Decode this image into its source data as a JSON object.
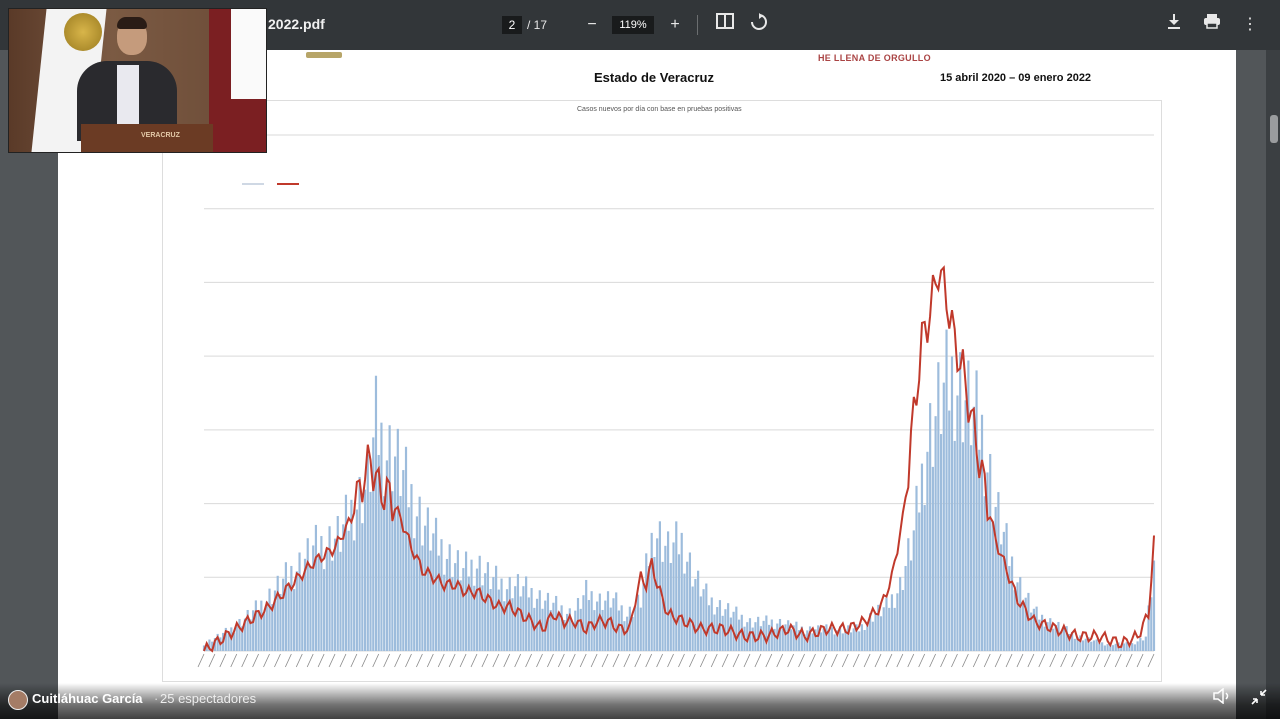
{
  "toolbar": {
    "filename": "2022.pdf",
    "page_current": "2",
    "page_total": "/ 17",
    "zoom": "119%",
    "icons": [
      "zoom-out-icon",
      "zoom-in-icon",
      "fit-page-icon",
      "rotate-icon",
      "download-icon",
      "print-icon",
      "more-icon"
    ]
  },
  "document": {
    "banner_fragment": "HE LLENA DE ORGULLO",
    "title": "Estado de Veracruz",
    "date_range": "15 abril 2020 – 09 enero 2022",
    "chart_title": "Casos nuevos por día con base en pruebas positivas"
  },
  "video": {
    "podium_label": "VERACRUZ"
  },
  "stream": {
    "streamer": "Cuitláhuac García",
    "separator": "·",
    "viewers": "25 espectadores"
  },
  "colors": {
    "bars": "#9dbcdc",
    "line": "#c0392b",
    "toolbar": "#323639"
  },
  "chart_data": {
    "type": "bar",
    "title": "Casos nuevos por día con base en pruebas positivas",
    "xlabel": "",
    "ylabel": "",
    "ylim": [
      0,
      70
    ],
    "grid": true,
    "series": [
      {
        "type": "bar",
        "anchors": [
          [
            0,
            1
          ],
          [
            10,
            3
          ],
          [
            20,
            6
          ],
          [
            30,
            10
          ],
          [
            40,
            14
          ],
          [
            50,
            16
          ],
          [
            55,
            20
          ],
          [
            60,
            23
          ],
          [
            63,
            31
          ],
          [
            66,
            28
          ],
          [
            70,
            27
          ],
          [
            75,
            22
          ],
          [
            80,
            18
          ],
          [
            85,
            15
          ],
          [
            90,
            13
          ],
          [
            95,
            11
          ],
          [
            100,
            12
          ],
          [
            105,
            10
          ],
          [
            110,
            9
          ],
          [
            115,
            9
          ],
          [
            120,
            8
          ],
          [
            125,
            7
          ],
          [
            130,
            6
          ],
          [
            135,
            5
          ],
          [
            140,
            8
          ],
          [
            145,
            7
          ],
          [
            150,
            7
          ],
          [
            155,
            5
          ],
          [
            160,
            7
          ],
          [
            165,
            17
          ],
          [
            170,
            14
          ],
          [
            175,
            15
          ],
          [
            180,
            10
          ],
          [
            185,
            7
          ],
          [
            190,
            6
          ],
          [
            195,
            5
          ],
          [
            200,
            4
          ],
          [
            210,
            4
          ],
          [
            220,
            3
          ],
          [
            230,
            3
          ],
          [
            240,
            3
          ],
          [
            245,
            5
          ],
          [
            250,
            6
          ],
          [
            255,
            9
          ],
          [
            260,
            16
          ],
          [
            265,
            29
          ],
          [
            270,
            35
          ],
          [
            275,
            38
          ],
          [
            280,
            34
          ],
          [
            285,
            30
          ],
          [
            290,
            20
          ],
          [
            295,
            13
          ],
          [
            300,
            8
          ],
          [
            305,
            5
          ],
          [
            310,
            4
          ],
          [
            320,
            2
          ],
          [
            330,
            1
          ],
          [
            340,
            1
          ],
          [
            345,
            2
          ],
          [
            348,
            12
          ]
        ]
      },
      {
        "type": "line",
        "anchors": [
          [
            0,
            0
          ],
          [
            8,
            2
          ],
          [
            16,
            4
          ],
          [
            24,
            6
          ],
          [
            32,
            9
          ],
          [
            40,
            12
          ],
          [
            48,
            14
          ],
          [
            54,
            18
          ],
          [
            58,
            23
          ],
          [
            61,
            26
          ],
          [
            64,
            22
          ],
          [
            68,
            21
          ],
          [
            72,
            18
          ],
          [
            76,
            14
          ],
          [
            80,
            11
          ],
          [
            84,
            10
          ],
          [
            88,
            9
          ],
          [
            92,
            9
          ],
          [
            96,
            8
          ],
          [
            100,
            8
          ],
          [
            104,
            7
          ],
          [
            108,
            6
          ],
          [
            112,
            6
          ],
          [
            116,
            5
          ],
          [
            120,
            4
          ],
          [
            124,
            3
          ],
          [
            128,
            5
          ],
          [
            132,
            4
          ],
          [
            136,
            4
          ],
          [
            140,
            3
          ],
          [
            144,
            4
          ],
          [
            148,
            4
          ],
          [
            152,
            3
          ],
          [
            156,
            3
          ],
          [
            158,
            7
          ],
          [
            160,
            10
          ],
          [
            162,
            9
          ],
          [
            164,
            12
          ],
          [
            166,
            9
          ],
          [
            170,
            5
          ],
          [
            176,
            4
          ],
          [
            182,
            3
          ],
          [
            190,
            3
          ],
          [
            198,
            2
          ],
          [
            206,
            2
          ],
          [
            214,
            3
          ],
          [
            220,
            2
          ],
          [
            228,
            3
          ],
          [
            236,
            3
          ],
          [
            242,
            4
          ],
          [
            248,
            6
          ],
          [
            252,
            10
          ],
          [
            256,
            18
          ],
          [
            260,
            32
          ],
          [
            263,
            42
          ],
          [
            266,
            46
          ],
          [
            269,
            52
          ],
          [
            272,
            48
          ],
          [
            275,
            42
          ],
          [
            278,
            38
          ],
          [
            282,
            30
          ],
          [
            286,
            22
          ],
          [
            290,
            15
          ],
          [
            294,
            11
          ],
          [
            298,
            7
          ],
          [
            304,
            4
          ],
          [
            312,
            3
          ],
          [
            320,
            2
          ],
          [
            328,
            2
          ],
          [
            336,
            1
          ],
          [
            342,
            2
          ],
          [
            346,
            5
          ],
          [
            348,
            15
          ]
        ]
      }
    ]
  }
}
